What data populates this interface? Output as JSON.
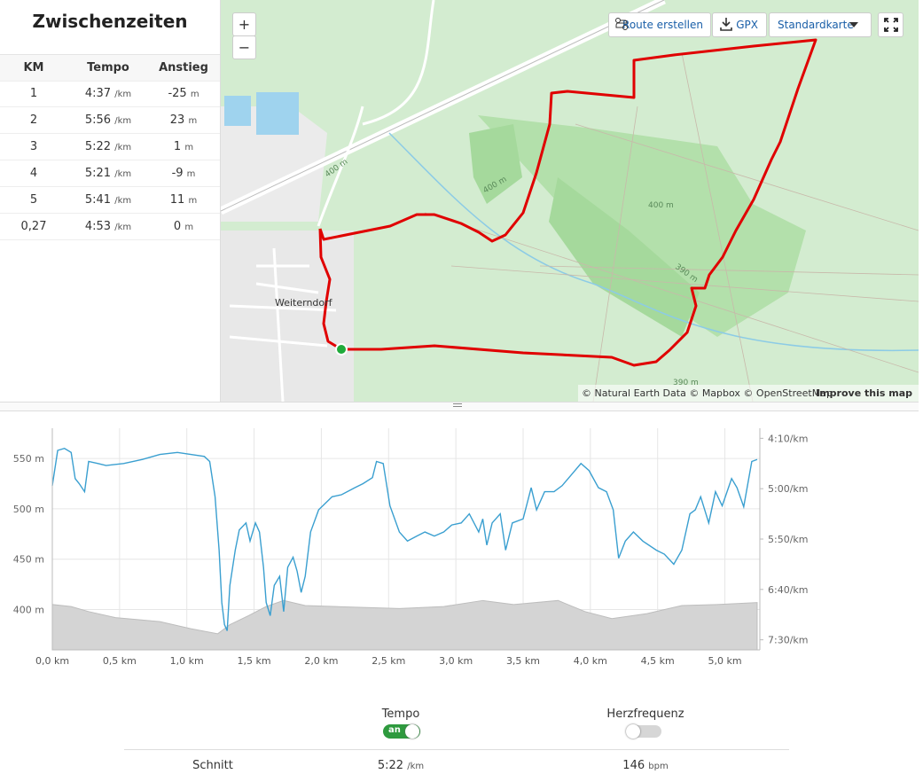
{
  "splits": {
    "title": "Zwischenzeiten",
    "headers": [
      "KM",
      "Tempo",
      "Anstieg"
    ],
    "rows": [
      {
        "km": "1",
        "tempo": "4:37",
        "tempo_unit": "/km",
        "climb": "-25",
        "climb_unit": "m"
      },
      {
        "km": "2",
        "tempo": "5:56",
        "tempo_unit": "/km",
        "climb": "23",
        "climb_unit": "m"
      },
      {
        "km": "3",
        "tempo": "5:22",
        "tempo_unit": "/km",
        "climb": "1",
        "climb_unit": "m"
      },
      {
        "km": "4",
        "tempo": "5:21",
        "tempo_unit": "/km",
        "climb": "-9",
        "climb_unit": "m"
      },
      {
        "km": "5",
        "tempo": "5:41",
        "tempo_unit": "/km",
        "climb": "11",
        "climb_unit": "m"
      },
      {
        "km": "0,27",
        "tempo": "4:53",
        "tempo_unit": "/km",
        "climb": "0",
        "climb_unit": "m"
      }
    ]
  },
  "map": {
    "zoom_in": "+",
    "zoom_out": "−",
    "toolbar": [
      "Route erstellen",
      "GPX",
      "Standardkarte"
    ],
    "place": "Weiterndorf",
    "contours": [
      "400 m",
      "400 m",
      "400 m",
      "390 m",
      "390 m"
    ],
    "attribution": "© Natural Earth Data © Mapbox © OpenStreetMap",
    "improve": "Improve this map"
  },
  "chart_data": {
    "type": "line",
    "xlim": [
      0,
      5.26
    ],
    "xticks": [
      {
        "value": 0,
        "label": "0,0 km"
      },
      {
        "value": 0.5,
        "label": "0,5 km"
      },
      {
        "value": 1,
        "label": "1,0 km"
      },
      {
        "value": 1.5,
        "label": "1,5 km"
      },
      {
        "value": 2,
        "label": "2,0 km"
      },
      {
        "value": 2.5,
        "label": "2,5 km"
      },
      {
        "value": 3,
        "label": "3,0 km"
      },
      {
        "value": 3.5,
        "label": "3,5 km"
      },
      {
        "value": 4,
        "label": "4,0 km"
      },
      {
        "value": 4.5,
        "label": "4,5 km"
      },
      {
        "value": 5,
        "label": "5,0 km"
      }
    ],
    "ylim": [
      360,
      580
    ],
    "yticks": [
      {
        "value": 400,
        "label": "400 m"
      },
      {
        "value": 450,
        "label": "450 m"
      },
      {
        "value": 500,
        "label": "500 m"
      },
      {
        "value": 550,
        "label": "550 m"
      }
    ],
    "y2lim": [
      460,
      240
    ],
    "y2ticks": [
      {
        "value": 250,
        "label": "4:10/km"
      },
      {
        "value": 300,
        "label": "5:00/km"
      },
      {
        "value": 350,
        "label": "5:50/km"
      },
      {
        "value": 400,
        "label": "6:40/km"
      },
      {
        "value": 450,
        "label": "7:30/km"
      }
    ],
    "grid": true,
    "series": [
      {
        "type": "area",
        "color": "#d4d4d4",
        "x": [
          0,
          0.14,
          0.27,
          0.47,
          0.8,
          1.03,
          1.23,
          1.32,
          1.46,
          1.59,
          1.72,
          1.88,
          2.11,
          2.58,
          2.91,
          3.2,
          3.43,
          3.76,
          3.96,
          4.16,
          4.42,
          4.68,
          4.94,
          5.24
        ],
        "values": [
          405,
          403,
          398,
          392,
          388,
          381,
          376,
          385,
          394,
          403,
          409,
          404,
          403,
          401,
          403,
          409,
          405,
          409,
          398,
          391,
          396,
          404,
          405,
          407
        ]
      },
      {
        "type": "line",
        "axis": "y2",
        "color": "#3a9fd0",
        "x": [
          0,
          0.04,
          0.09,
          0.14,
          0.17,
          0.2,
          0.24,
          0.27,
          0.34,
          0.4,
          0.53,
          0.67,
          0.8,
          0.93,
          1.03,
          1.13,
          1.17,
          1.21,
          1.24,
          1.26,
          1.28,
          1.3,
          1.32,
          1.36,
          1.39,
          1.44,
          1.47,
          1.51,
          1.54,
          1.57,
          1.59,
          1.62,
          1.65,
          1.69,
          1.72,
          1.75,
          1.79,
          1.82,
          1.85,
          1.88,
          1.92,
          1.98,
          2.08,
          2.15,
          2.25,
          2.31,
          2.38,
          2.41,
          2.46,
          2.51,
          2.58,
          2.64,
          2.71,
          2.77,
          2.84,
          2.91,
          2.97,
          3.04,
          3.1,
          3.17,
          3.2,
          3.23,
          3.27,
          3.33,
          3.37,
          3.42,
          3.5,
          3.56,
          3.6,
          3.66,
          3.73,
          3.79,
          3.86,
          3.93,
          3.99,
          4.06,
          4.12,
          4.17,
          4.21,
          4.26,
          4.32,
          4.39,
          4.49,
          4.55,
          4.62,
          4.68,
          4.74,
          4.78,
          4.82,
          4.88,
          4.93,
          4.98,
          5.05,
          5.09,
          5.14,
          5.2,
          5.24
        ],
        "values": [
          297,
          262,
          260,
          264,
          290,
          295,
          303,
          273,
          275,
          277,
          275,
          271,
          266,
          264,
          266,
          268,
          273,
          308,
          361,
          413,
          435,
          441,
          396,
          361,
          341,
          334,
          352,
          334,
          343,
          378,
          413,
          426,
          396,
          387,
          422,
          378,
          368,
          382,
          403,
          387,
          343,
          321,
          308,
          306,
          299,
          295,
          289,
          273,
          275,
          317,
          343,
          352,
          347,
          343,
          347,
          343,
          336,
          334,
          325,
          343,
          330,
          356,
          334,
          325,
          361,
          334,
          330,
          299,
          321,
          303,
          303,
          297,
          286,
          275,
          282,
          299,
          303,
          321,
          369,
          352,
          343,
          352,
          361,
          365,
          375,
          361,
          325,
          321,
          308,
          334,
          303,
          317,
          290,
          299,
          318,
          273,
          271
        ]
      }
    ]
  },
  "controls": {
    "tempo": "Tempo",
    "tempo_state": "an",
    "heart": "Herzfrequenz",
    "stat_label": "Schnitt",
    "stat_tempo": "5:22",
    "stat_tempo_unit": "/km",
    "stat_hr": "146",
    "stat_hr_unit": "bpm"
  }
}
